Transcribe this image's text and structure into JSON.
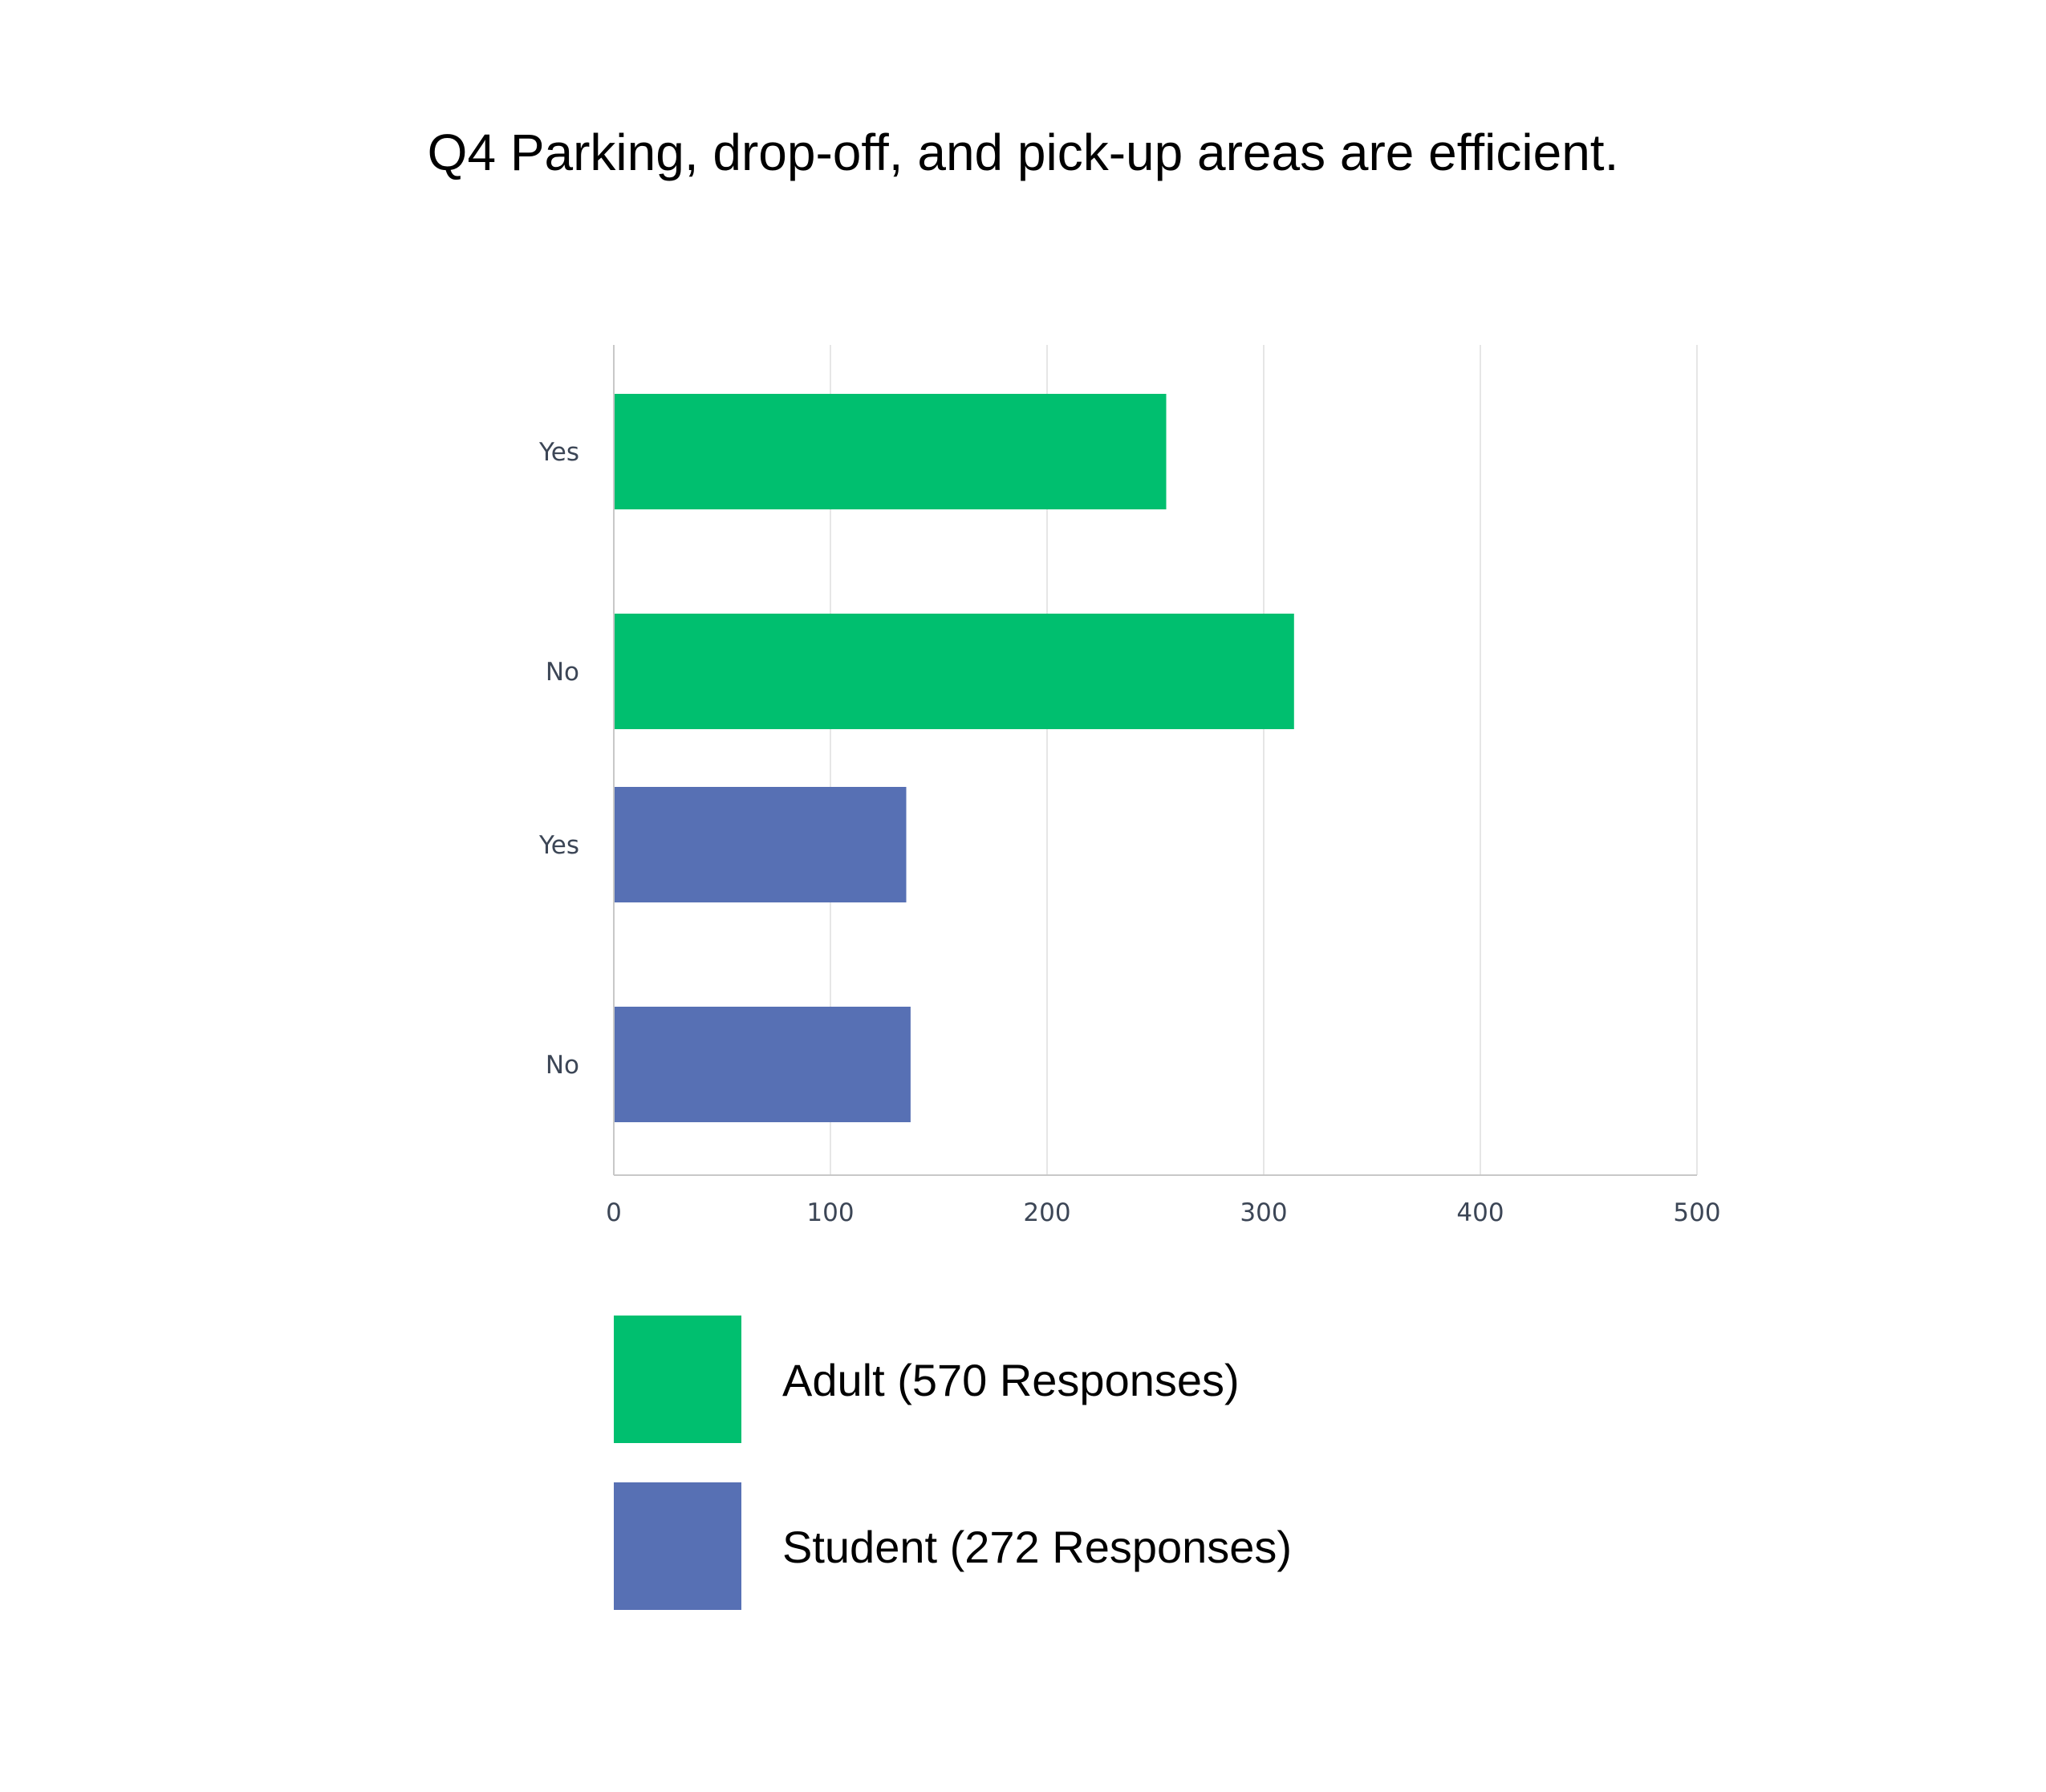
{
  "chart_data": {
    "type": "bar",
    "orientation": "horizontal",
    "title": "Q4 Parking, drop-off, and pick-up areas are efficient.",
    "xlabel": "",
    "ylabel": "",
    "xlim": [
      0,
      500
    ],
    "x_ticks": [
      "0",
      "100",
      "200",
      "300",
      "400",
      "500"
    ],
    "grid": true,
    "legend_position": "bottom",
    "series": [
      {
        "name": "Adult (570 Responses)",
        "color": "#00bf6f",
        "categories": [
          "Yes",
          "No"
        ],
        "values": [
          255,
          314
        ]
      },
      {
        "name": "Student (272 Responses)",
        "color": "#5770b4",
        "categories": [
          "Yes",
          "No"
        ],
        "values": [
          135,
          137
        ]
      }
    ]
  }
}
